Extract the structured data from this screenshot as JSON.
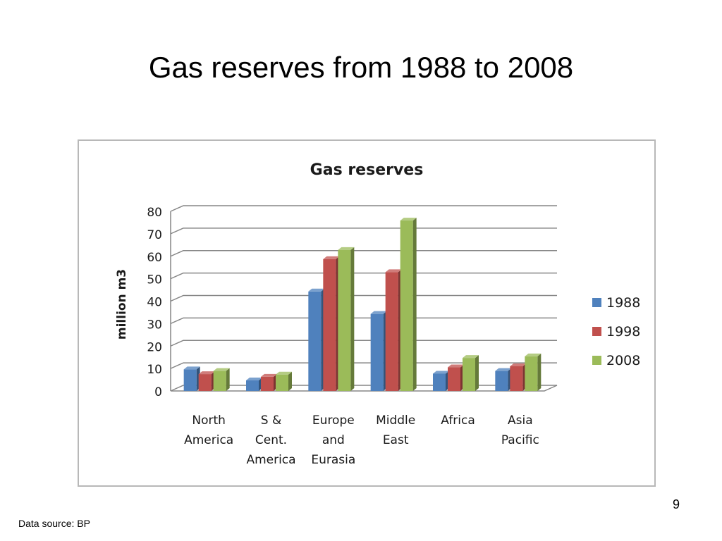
{
  "slide": {
    "title": "Gas reserves from 1988 to 2008",
    "page_number": "9",
    "source": "Data source: BP"
  },
  "chart_data": {
    "type": "bar",
    "title": "Gas reserves",
    "xlabel": "",
    "ylabel": "million m3",
    "ylim": [
      0,
      80
    ],
    "yticks": [
      "0",
      "10",
      "20",
      "30",
      "40",
      "50",
      "60",
      "70",
      "80"
    ],
    "categories": [
      [
        "North",
        "America"
      ],
      [
        "S &",
        "Cent.",
        "America"
      ],
      [
        "Europe",
        "and",
        "Eurasia"
      ],
      [
        "Middle",
        "East"
      ],
      [
        "Africa"
      ],
      [
        "Asia",
        "Pacific"
      ]
    ],
    "series": [
      {
        "name": "1988",
        "color": "#4f81bd",
        "values": [
          9.6,
          4.7,
          44.3,
          34.3,
          7.7,
          8.9
        ]
      },
      {
        "name": "1998",
        "color": "#c0504d",
        "values": [
          7.5,
          6.3,
          58.7,
          52.9,
          10.5,
          11.0
        ]
      },
      {
        "name": "2008",
        "color": "#9bbb59",
        "values": [
          8.9,
          7.3,
          62.8,
          75.9,
          14.7,
          15.4
        ]
      }
    ],
    "legend_position": "right",
    "grid": true,
    "style": "3d-clustered-column"
  }
}
